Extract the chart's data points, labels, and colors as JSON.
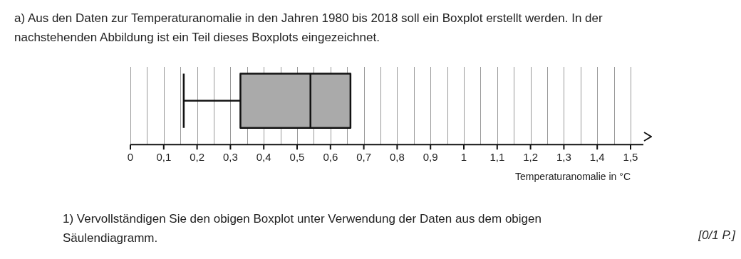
{
  "chart_data": {
    "type": "box",
    "orientation": "horizontal",
    "title": "a)  Aus den Daten zur Temperaturanomalie in den Jahren 1980 bis 2018 soll ein Boxplot erstellt werden. In der nachstehenden Abbildung ist ein Teil dieses Boxplots eingezeichnet.",
    "categories": [
      null
    ],
    "boxes": [
      {
        "low": 0.16,
        "q1": 0.33,
        "median": 0.54,
        "q3": 0.66,
        "high": null
      }
    ],
    "color": "#aaaaaa",
    "xlabel": "Temperaturanomalie in °C",
    "xlim": [
      0,
      1.5
    ],
    "xticks": [
      {
        "value": 0,
        "label": "0"
      },
      {
        "value": 0.05,
        "label": null
      },
      {
        "value": 0.1,
        "label": "0,1"
      },
      {
        "value": 0.15,
        "label": null
      },
      {
        "value": 0.2,
        "label": "0,2"
      },
      {
        "value": 0.25,
        "label": null
      },
      {
        "value": 0.3,
        "label": "0,3"
      },
      {
        "value": 0.35,
        "label": null
      },
      {
        "value": 0.4,
        "label": "0,4"
      },
      {
        "value": 0.45,
        "label": null
      },
      {
        "value": 0.5,
        "label": "0,5"
      },
      {
        "value": 0.55,
        "label": null
      },
      {
        "value": 0.6,
        "label": "0,6"
      },
      {
        "value": 0.65,
        "label": null
      },
      {
        "value": 0.7,
        "label": "0,7"
      },
      {
        "value": 0.75,
        "label": null
      },
      {
        "value": 0.8,
        "label": "0,8"
      },
      {
        "value": 0.85,
        "label": null
      },
      {
        "value": 0.9,
        "label": "0,9"
      },
      {
        "value": 0.95,
        "label": null
      },
      {
        "value": 1,
        "label": "1"
      },
      {
        "value": 1.05,
        "label": null
      },
      {
        "value": 1.1,
        "label": "1,1"
      },
      {
        "value": 1.15,
        "label": null
      },
      {
        "value": 1.2,
        "label": "1,2"
      },
      {
        "value": 1.25,
        "label": null
      },
      {
        "value": 1.3,
        "label": "1,3"
      },
      {
        "value": 1.35,
        "label": null
      },
      {
        "value": 1.4,
        "label": "1,4"
      },
      {
        "value": 1.45,
        "label": null
      },
      {
        "value": 1.5,
        "label": "1,5"
      }
    ],
    "grid": "x",
    "tick_labels": "x",
    "annotations": [
      "1)  Vervollständigen Sie den obigen Boxplot unter Verwendung der Daten aus dem obigen Säulendiagramm.",
      "[0/1 P.]"
    ]
  }
}
